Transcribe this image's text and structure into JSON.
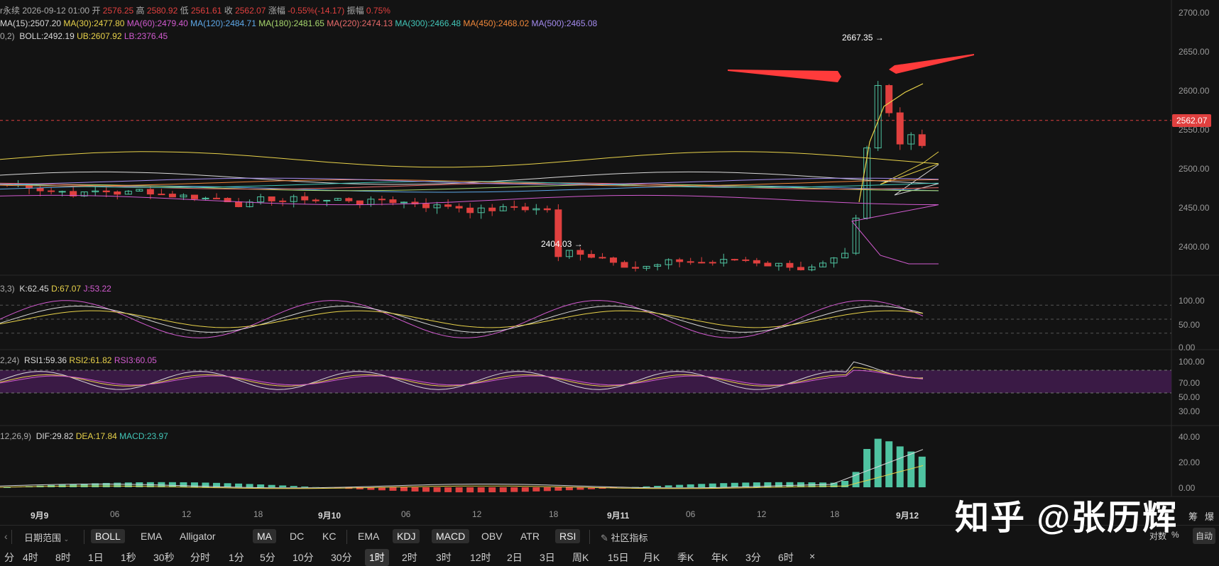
{
  "header": {
    "prefix": "r永续",
    "datetime": "2026-09-12 01:00",
    "open_label": "开",
    "open": "2576.25",
    "high_label": "高",
    "high": "2580.92",
    "low_label": "低",
    "low": "2561.61",
    "close_label": "收",
    "close": "2562.07",
    "change_label": "涨幅",
    "change": "-0.55%(-14.17)",
    "amp_label": "振幅",
    "amp": "0.75%"
  },
  "ma_legend": [
    {
      "text": "MA(15):2507.20",
      "color": "#d9d9d9"
    },
    {
      "text": "MA(30):2477.80",
      "color": "#e8d24a"
    },
    {
      "text": "MA(60):2479.40",
      "color": "#d25bd0"
    },
    {
      "text": "MA(120):2484.71",
      "color": "#5ea8e8"
    },
    {
      "text": "MA(180):2481.65",
      "color": "#a9d86e"
    },
    {
      "text": "MA(220):2474.13",
      "color": "#e86a6a"
    },
    {
      "text": "MA(300):2466.48",
      "color": "#42c6b8"
    },
    {
      "text": "MA(450):2468.02",
      "color": "#f0883a"
    },
    {
      "text": "MA(500):2465.08",
      "color": "#a58cf0"
    }
  ],
  "boll_legend": {
    "prefix": "0,2)",
    "boll": "BOLL:2492.19",
    "ub": "UB:2607.92",
    "lb": "LB:2376.45"
  },
  "kdj_legend": {
    "prefix": "3,3)",
    "k": "K:62.45",
    "d": "D:67.07",
    "j": "J:53.22"
  },
  "rsi_legend": {
    "prefix": "2,24)",
    "r1": "RSI1:59.36",
    "r2": "RSI2:61.82",
    "r3": "RSI3:60.05"
  },
  "macd_legend": {
    "prefix": "12,26,9)",
    "dif": "DIF:29.82",
    "dea": "DEA:17.84",
    "macd": "MACD:23.97"
  },
  "price_axis": [
    "2700.00",
    "2650.00",
    "2600.00",
    "2550.00",
    "2500.00",
    "2450.00",
    "2400.00"
  ],
  "kdj_axis": [
    "100.00",
    "50.00",
    "0.00"
  ],
  "rsi_axis": [
    "100.00",
    "70.00",
    "50.00",
    "30.00"
  ],
  "macd_axis": [
    "40.00",
    "20.00",
    "0.00"
  ],
  "current_price": "2562.07",
  "high_marker": "2667.35 →",
  "low_marker": "2404.03 →",
  "x_axis": [
    {
      "t": "9月9",
      "bold": true
    },
    {
      "t": "06"
    },
    {
      "t": "12"
    },
    {
      "t": "18"
    },
    {
      "t": "9月10",
      "bold": true
    },
    {
      "t": "06"
    },
    {
      "t": "12"
    },
    {
      "t": "18"
    },
    {
      "t": "9月11",
      "bold": true
    },
    {
      "t": "06"
    },
    {
      "t": "12"
    },
    {
      "t": "18"
    },
    {
      "t": "9月12",
      "bold": true
    }
  ],
  "toolbar": {
    "date_range": "日期范围",
    "main_indicators": [
      {
        "label": "BOLL",
        "on": true
      },
      {
        "label": "EMA"
      },
      {
        "label": "Alligator"
      },
      {
        "label": "MA",
        "on": true
      },
      {
        "label": "DC"
      },
      {
        "label": "KC"
      }
    ],
    "sub_indicators": [
      {
        "label": "EMA"
      },
      {
        "label": "KDJ",
        "on": true
      },
      {
        "label": "MACD",
        "on": true
      },
      {
        "label": "OBV"
      },
      {
        "label": "ATR"
      },
      {
        "label": "RSI",
        "on": true
      }
    ],
    "community": "社区指标",
    "right_a": "筹",
    "right_b": "爆",
    "log": "对数",
    "pct": "%",
    "auto": "自动"
  },
  "timeframes": [
    {
      "label": "分"
    },
    {
      "label": "4时"
    },
    {
      "label": "8时"
    },
    {
      "label": "1日"
    },
    {
      "label": "1秒"
    },
    {
      "label": "30秒"
    },
    {
      "label": "分时"
    },
    {
      "label": "1分"
    },
    {
      "label": "5分"
    },
    {
      "label": "10分"
    },
    {
      "label": "30分"
    },
    {
      "label": "1时",
      "on": true
    },
    {
      "label": "2时"
    },
    {
      "label": "3时"
    },
    {
      "label": "12时"
    },
    {
      "label": "2日"
    },
    {
      "label": "3日"
    },
    {
      "label": "周K"
    },
    {
      "label": "15日"
    },
    {
      "label": "月K"
    },
    {
      "label": "季K"
    },
    {
      "label": "年K"
    },
    {
      "label": "3分"
    },
    {
      "label": "6时"
    },
    {
      "label": "×"
    }
  ],
  "watermark": "知乎 @张历辉",
  "colors": {
    "up": "#4fc3a1",
    "down": "#e0403f",
    "bg": "#131313",
    "rsi_band": "#3a1a45"
  }
}
